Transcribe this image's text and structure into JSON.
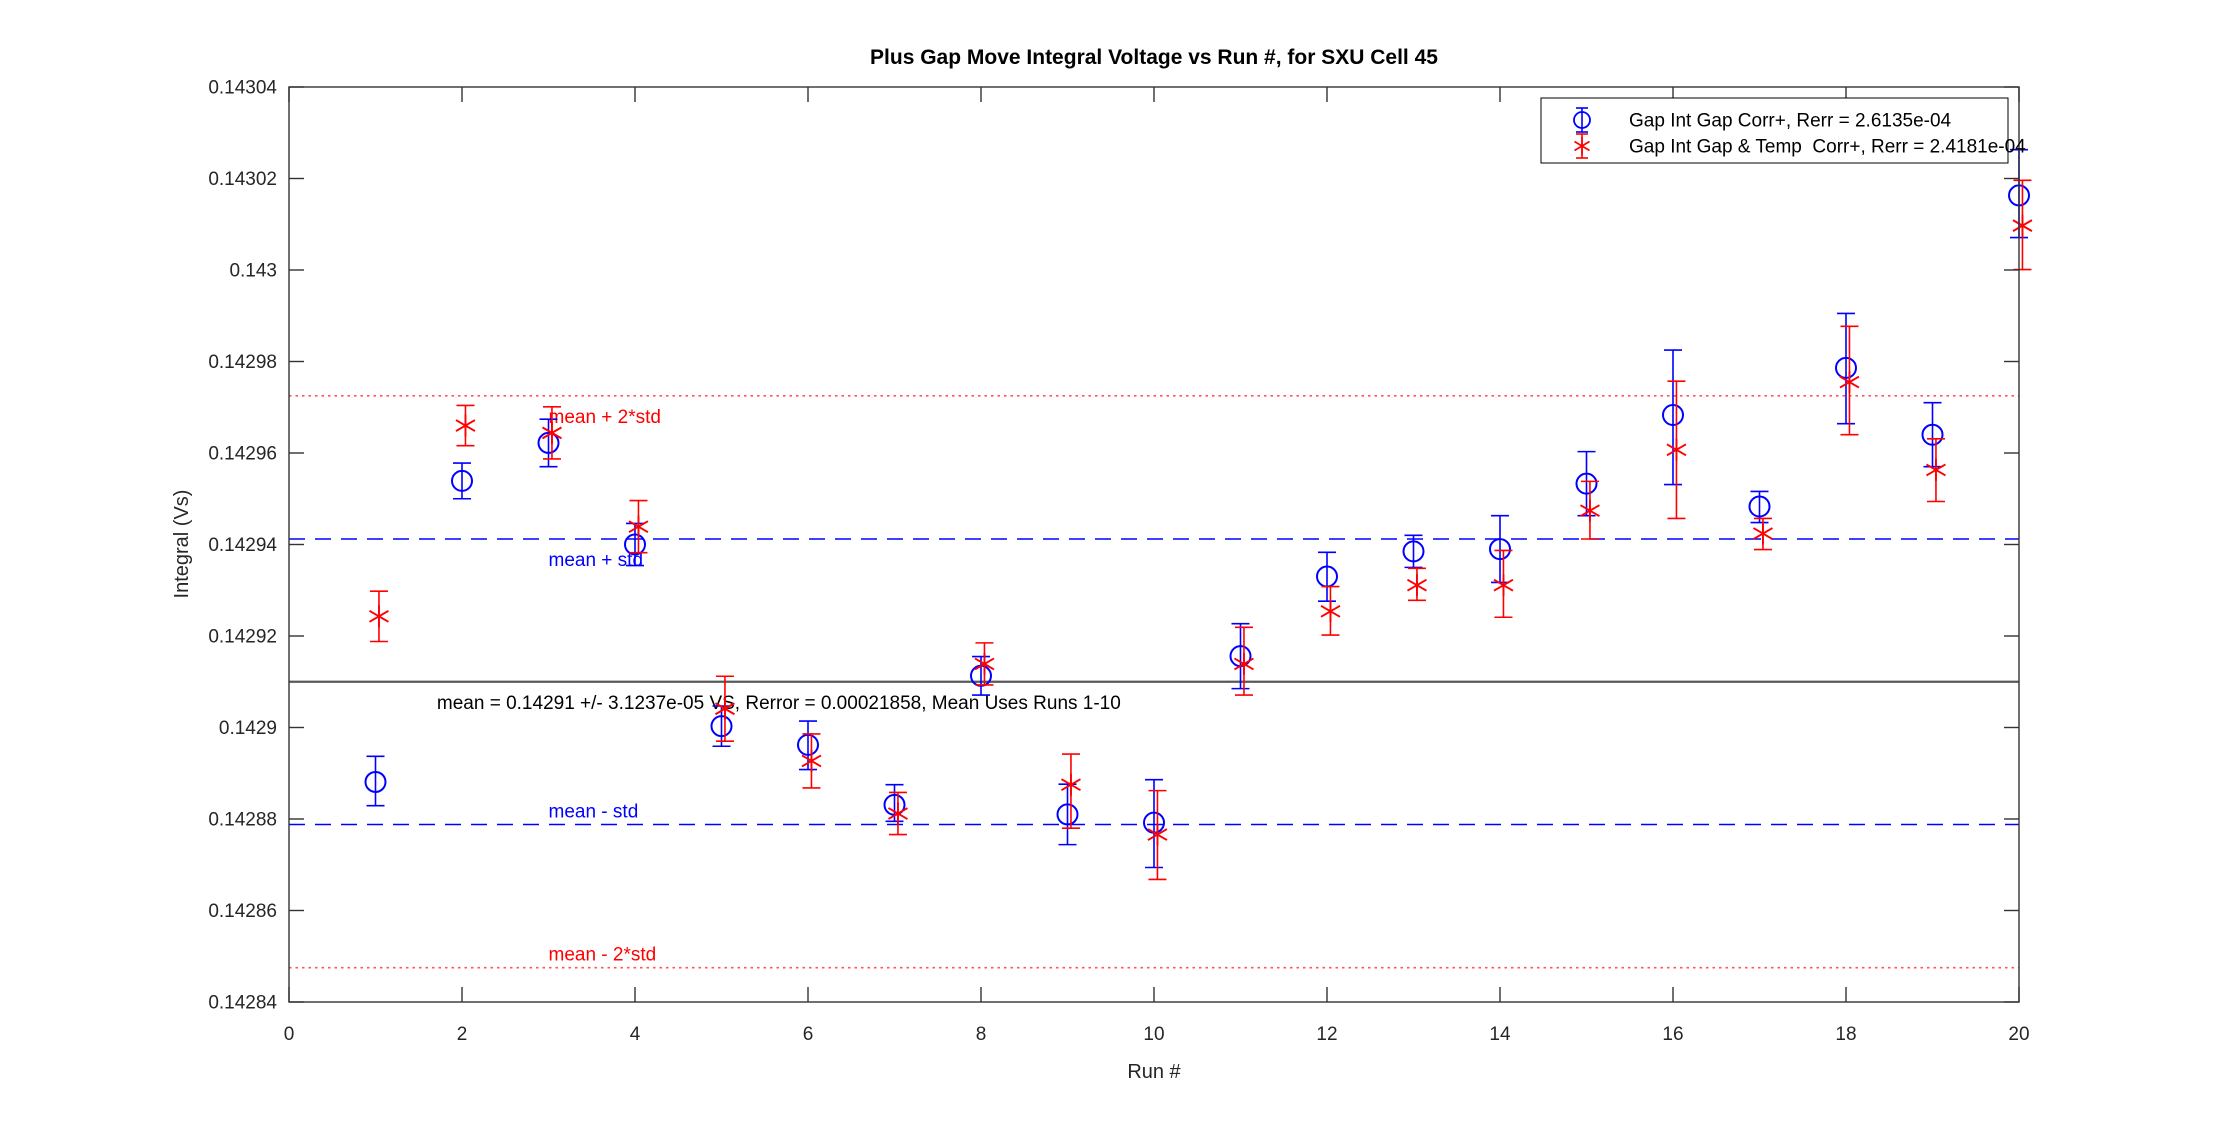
{
  "chart_data": {
    "type": "scatter",
    "title": "Plus Gap Move Integral Voltage vs Run #, for SXU Cell 45",
    "xlabel": "Run #",
    "ylabel": "Integral (Vs)",
    "xlim": [
      0,
      20
    ],
    "ylim": [
      0.14284,
      0.14304
    ],
    "grid": false,
    "legend_position": "top-right",
    "x_ticks": [
      0,
      2,
      4,
      6,
      8,
      10,
      12,
      14,
      16,
      18,
      20
    ],
    "y_ticks": [
      0.14284,
      0.14286,
      0.14288,
      0.1429,
      0.14292,
      0.14294,
      0.14296,
      0.14298,
      0.143,
      0.14302,
      0.14304
    ],
    "y_tick_labels": [
      "0.14284",
      "0.14286",
      "0.14288",
      "0.1429",
      "0.14292",
      "0.14294",
      "0.14296",
      "0.14298",
      "0.143",
      "0.14302",
      "0.14304"
    ],
    "x": [
      1,
      2,
      3,
      4,
      5,
      6,
      7,
      8,
      9,
      10,
      11,
      12,
      13,
      14,
      15,
      16,
      17,
      18,
      19,
      20
    ],
    "series": [
      {
        "name": "Gap Int Gap Corr+, Rerr = 2.6135e-04",
        "color": "#0000ff",
        "marker": "circle",
        "x_offset": 0,
        "values": [
          0.1428881,
          0.1429539,
          0.1429622,
          0.14294,
          0.1429003,
          0.1428962,
          0.1428831,
          0.1429113,
          0.142881,
          0.1428792,
          0.1429156,
          0.142933,
          0.1429385,
          0.142939,
          0.1429533,
          0.1429683,
          0.1429483,
          0.1429786,
          0.142964,
          0.1430163
        ],
        "err_lo": [
          0.1428829,
          0.14295,
          0.142957,
          0.1429354,
          0.1428959,
          0.1428908,
          0.1428795,
          0.1429071,
          0.1428744,
          0.1428694,
          0.1429085,
          0.1429276,
          0.142935,
          0.1429317,
          0.1429463,
          0.1429531,
          0.1429448,
          0.1429664,
          0.142957,
          0.1430071
        ],
        "err_hi": [
          0.1428937,
          0.1429578,
          0.1429674,
          0.1429446,
          0.1429047,
          0.1429014,
          0.1428875,
          0.1429155,
          0.1428876,
          0.1428886,
          0.1429227,
          0.1429383,
          0.142942,
          0.1429463,
          0.1429603,
          0.1429825,
          0.1429516,
          0.1429905,
          0.142971,
          0.1430263
        ]
      },
      {
        "name": "Gap Int Gap & Temp  Corr+, Rerr = 2.4181e-04",
        "color": "#ff0000",
        "marker": "asterisk",
        "x_offset": 0.04,
        "values": [
          0.1429243,
          0.142966,
          0.1429644,
          0.1429439,
          0.1429041,
          0.1428927,
          0.1428812,
          0.1429139,
          0.1428875,
          0.1428766,
          0.1429139,
          0.1429254,
          0.1429311,
          0.1429311,
          0.1429474,
          0.1429607,
          0.1429424,
          0.1429755,
          0.1429563,
          0.1430097
        ],
        "err_lo": [
          0.1429188,
          0.1429616,
          0.1429587,
          0.1429382,
          0.142897,
          0.1428868,
          0.1428766,
          0.1429093,
          0.142878,
          0.1428668,
          0.1429071,
          0.1429202,
          0.1429278,
          0.1429241,
          0.1429412,
          0.1429457,
          0.1429389,
          0.142964,
          0.1429494,
          0.1430001
        ],
        "err_hi": [
          0.1429298,
          0.1429704,
          0.1429701,
          0.1429496,
          0.1429112,
          0.1428986,
          0.1428858,
          0.1429185,
          0.1428942,
          0.1428862,
          0.1429219,
          0.1429308,
          0.1429348,
          0.1429387,
          0.1429538,
          0.1429757,
          0.1429457,
          0.1429877,
          0.1429631,
          0.1430196
        ]
      }
    ],
    "reference_lines": [
      {
        "label": "mean + 2*std",
        "value": 0.1429725,
        "style": "dotted",
        "color": "#ff5555",
        "text_color": "#ff0000",
        "label_x": 3.0,
        "label_side": "below"
      },
      {
        "label": "mean + std",
        "value": 0.1429412,
        "style": "dashed",
        "color": "#0000ff",
        "text_color": "#0000ff",
        "label_x": 3.0,
        "label_side": "below"
      },
      {
        "label": "mean = 0.14291 +/- 3.1237e-05 VS, Rerror = 0.00021858, Mean Uses Runs 1-10",
        "value": 0.14291,
        "style": "solid",
        "color": "#595959",
        "text_color": "#000000",
        "label_x": 1.71,
        "label_side": "below"
      },
      {
        "label": "mean - std",
        "value": 0.1428788,
        "style": "dashed",
        "color": "#0000ff",
        "text_color": "#0000ff",
        "label_x": 3.0,
        "label_side": "above"
      },
      {
        "label": "mean - 2*std",
        "value": 0.1428475,
        "style": "dotted",
        "color": "#ff5555",
        "text_color": "#ff0000",
        "label_x": 3.0,
        "label_side": "above"
      }
    ]
  }
}
